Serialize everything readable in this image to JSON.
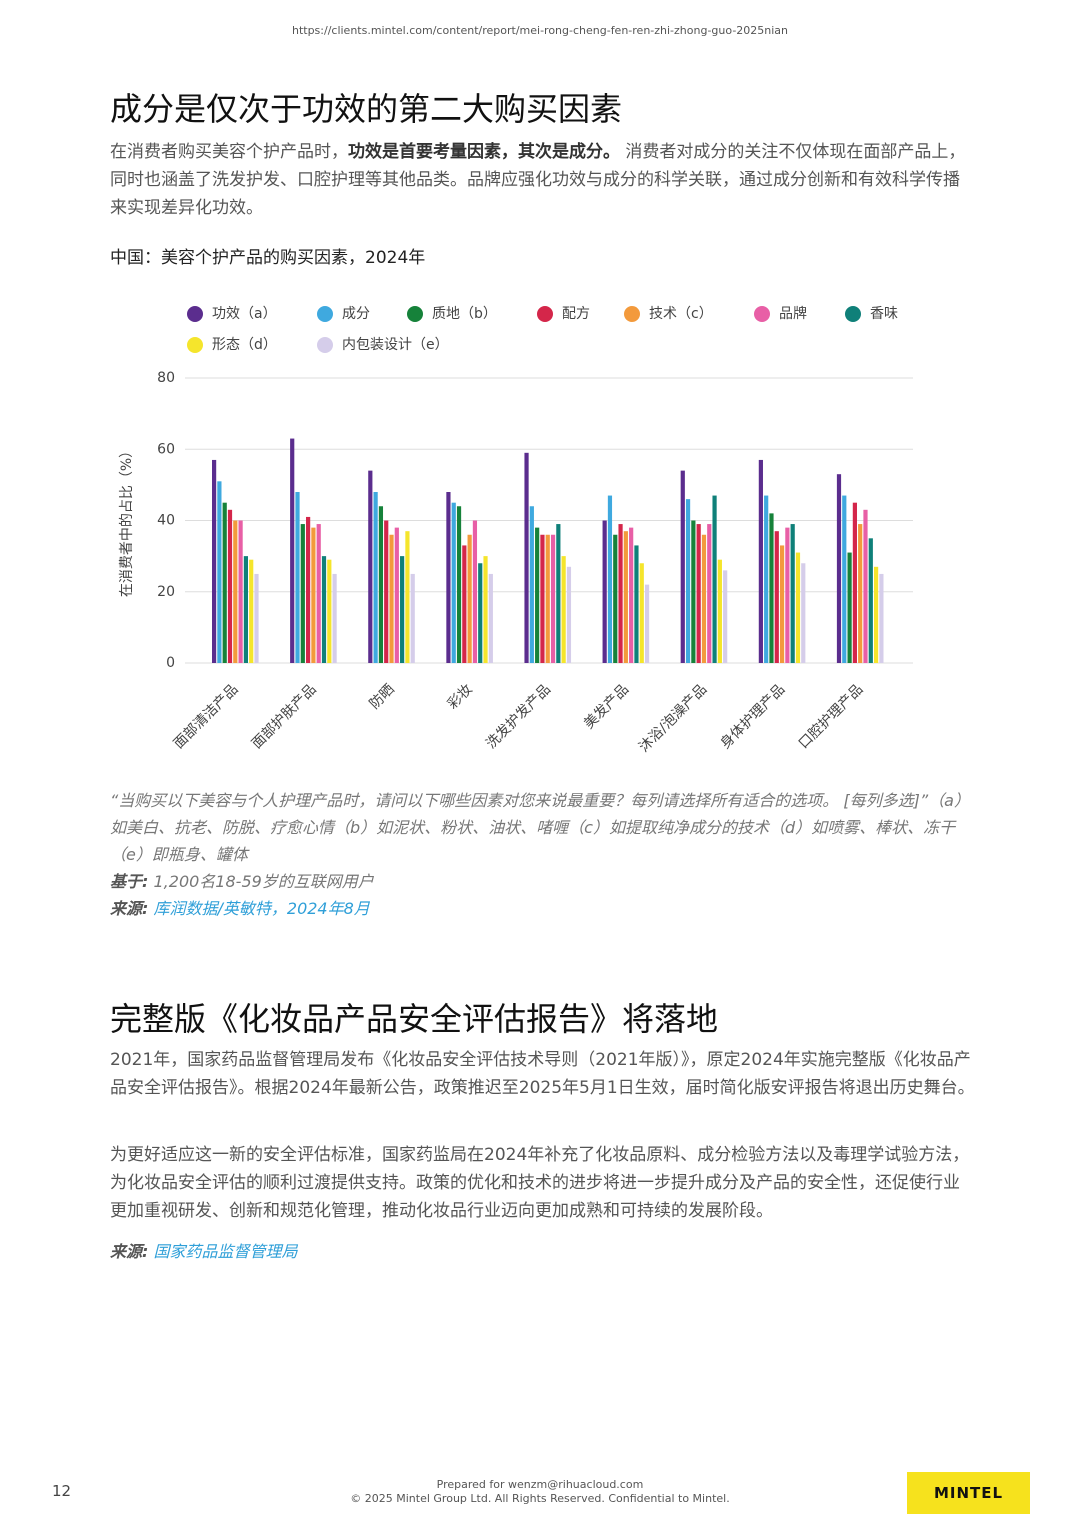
{
  "header": {
    "url": "https://clients.mintel.com/content/report/mei-rong-cheng-fen-ren-zhi-zhong-guo-2025nian"
  },
  "section1": {
    "title": "成分是仅次于功效的第二大购买因素",
    "intro": [
      "在消费者购买美容个护产品时，",
      "功效是首要考量因素，其次是成分。",
      " 消费者对成分的关注不仅体现在面部产品上，同时也涵盖了洗发护发、口腔护理等其他品类。品牌应强化功效与成分的科学关联，通过成分创新和有效科学传播来实现差异化功效。"
    ],
    "note": "“当购买以下美容与个人护理产品时，请问以下哪些因素对您来说最重要？每列请选择所有适合的选项。 [每列多选]”（a）如美白、抗老、防脱、疗愈心情（b）如泥状、粉状、油状、啫喱（c）如提取纯净成分的技术（d）如喷雾、棒状、冻干（e）即瓶身、罐体",
    "base_label": "基于:",
    "base": "1,200名18-59岁的互联网用户",
    "source_label": "来源:",
    "source": "库润数据/英敏特，2024年8月"
  },
  "chart_data": {
    "type": "bar",
    "title": "中国：美容个护产品的购买因素，2024年",
    "y_label": "在消费者中的占比（%）",
    "categories": [
      "面部清洁产品",
      "面部护肤产品",
      "防晒",
      "彩妆",
      "洗发护发产品",
      "美发产品",
      "沐浴/泡澡产品",
      "身体护理产品",
      "口腔护理产品"
    ],
    "series": [
      {
        "name": "功效（a）",
        "color": "#5b2d8e",
        "values": [
          57,
          63,
          54,
          48,
          59,
          40,
          54,
          57,
          53
        ]
      },
      {
        "name": "成分",
        "color": "#3fa9df",
        "values": [
          51,
          48,
          48,
          45,
          44,
          47,
          46,
          47,
          47
        ]
      },
      {
        "name": "质地（b）",
        "color": "#16823a",
        "values": [
          45,
          39,
          44,
          44,
          38,
          36,
          40,
          42,
          31
        ]
      },
      {
        "name": "配方",
        "color": "#d4264a",
        "values": [
          43,
          41,
          40,
          33,
          36,
          39,
          39,
          37,
          45
        ]
      },
      {
        "name": "技术（c）",
        "color": "#f39a3c",
        "values": [
          40,
          38,
          36,
          36,
          36,
          37,
          36,
          33,
          39
        ]
      },
      {
        "name": "品牌",
        "color": "#e85fa6",
        "values": [
          40,
          39,
          38,
          40,
          36,
          38,
          39,
          38,
          43
        ]
      },
      {
        "name": "香味",
        "color": "#0f8079",
        "values": [
          30,
          30,
          30,
          28,
          39,
          33,
          47,
          39,
          35
        ]
      },
      {
        "name": "形态（d）",
        "color": "#f5e52c",
        "values": [
          29,
          29,
          37,
          30,
          30,
          28,
          29,
          31,
          27
        ]
      },
      {
        "name": "内包装设计（e）",
        "color": "#d5cdea",
        "values": [
          25,
          25,
          25,
          25,
          27,
          22,
          26,
          28,
          25
        ]
      }
    ],
    "ylim": [
      0,
      80
    ],
    "yticks": [
      0,
      20,
      40,
      60,
      80
    ],
    "grid": true
  },
  "section2": {
    "title": "完整版《化妆品产品安全评估报告》将落地",
    "paragraphs": [
      "2021年，国家药品监督管理局发布《化妆品安全评估技术导则（2021年版）》，原定2024年实施完整版《化妆品产品安全评估报告》。根据2024年最新公告，政策推迟至2025年5月1日生效，届时简化版安评报告将退出历史舞台。",
      "为更好适应这一新的安全评估标准，国家药监局在2024年补充了化妆品原料、成分检验方法以及毒理学试验方法，为化妆品安全评估的顺利过渡提供支持。政策的优化和技术的进步将进一步提升成分及产品的安全性，还促使行业更加重视研发、创新和规范化管理，推动化妆品行业迈向更加成熟和可持续的发展阶段。"
    ],
    "source_label": "来源:",
    "source": "国家药品监督管理局"
  },
  "footer": {
    "page": "12",
    "prepared": "Prepared for wenzm@rihuacloud.com",
    "copyright": "© 2025 Mintel Group Ltd. All Rights Reserved. Confidential to Mintel.",
    "logo": "MINTEL"
  }
}
